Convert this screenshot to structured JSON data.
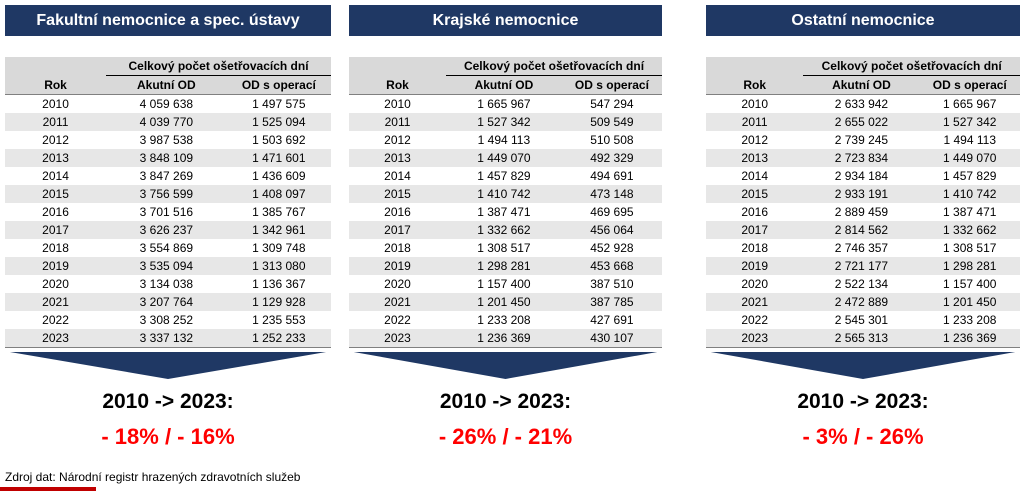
{
  "colors": {
    "header_bg": "#1F3864",
    "arrow": "#1F3864",
    "stripe": "#E7E7E7",
    "header_row_bg": "#D9D9D9",
    "accent_red": "#FF0000",
    "footer_line_red": "#C00000"
  },
  "panels": [
    {
      "title": "Fakultní nemocnice a spec. ústavy",
      "table": {
        "group_header": "Celkový počet ošetřovacích dní",
        "columns": [
          "Rok",
          "Akutní OD",
          "OD s operací"
        ],
        "rows": [
          [
            "2010",
            "4 059 638",
            "1 497 575"
          ],
          [
            "2011",
            "4 039 770",
            "1 525 094"
          ],
          [
            "2012",
            "3 987 538",
            "1 503 692"
          ],
          [
            "2013",
            "3 848 109",
            "1 471 601"
          ],
          [
            "2014",
            "3 847 269",
            "1 436 609"
          ],
          [
            "2015",
            "3 756 599",
            "1 408 097"
          ],
          [
            "2016",
            "3 701 516",
            "1 385 767"
          ],
          [
            "2017",
            "3 626 237",
            "1 342 961"
          ],
          [
            "2018",
            "3 554 869",
            "1 309 748"
          ],
          [
            "2019",
            "3 535 094",
            "1 313 080"
          ],
          [
            "2020",
            "3 134 038",
            "1 136 367"
          ],
          [
            "2021",
            "3 207 764",
            "1 129 928"
          ],
          [
            "2022",
            "3 308 252",
            "1 235 553"
          ],
          [
            "2023",
            "3 337 132",
            "1 252 233"
          ]
        ]
      },
      "summary": {
        "period": "2010 -> 2023:",
        "change": "- 18% / - 16%"
      }
    },
    {
      "title": "Krajské nemocnice",
      "table": {
        "group_header": "Celkový počet ošetřovacích dní",
        "columns": [
          "Rok",
          "Akutní OD",
          "OD s operací"
        ],
        "rows": [
          [
            "2010",
            "1 665 967",
            "547 294"
          ],
          [
            "2011",
            "1 527 342",
            "509 549"
          ],
          [
            "2012",
            "1 494 113",
            "510 508"
          ],
          [
            "2013",
            "1 449 070",
            "492 329"
          ],
          [
            "2014",
            "1 457 829",
            "494 691"
          ],
          [
            "2015",
            "1 410 742",
            "473 148"
          ],
          [
            "2016",
            "1 387 471",
            "469 695"
          ],
          [
            "2017",
            "1 332 662",
            "456 064"
          ],
          [
            "2018",
            "1 308 517",
            "452 928"
          ],
          [
            "2019",
            "1 298 281",
            "453 668"
          ],
          [
            "2020",
            "1 157 400",
            "387 510"
          ],
          [
            "2021",
            "1 201 450",
            "387 785"
          ],
          [
            "2022",
            "1 233 208",
            "427 691"
          ],
          [
            "2023",
            "1 236 369",
            "430 107"
          ]
        ]
      },
      "summary": {
        "period": "2010 -> 2023:",
        "change": "- 26% / - 21%"
      }
    },
    {
      "title": "Ostatní nemocnice",
      "table": {
        "group_header": "Celkový počet ošetřovacích dní",
        "columns": [
          "Rok",
          "Akutní OD",
          "OD s operací"
        ],
        "rows": [
          [
            "2010",
            "2 633 942",
            "1 665 967"
          ],
          [
            "2011",
            "2 655 022",
            "1 527 342"
          ],
          [
            "2012",
            "2 739 245",
            "1 494 113"
          ],
          [
            "2013",
            "2 723 834",
            "1 449 070"
          ],
          [
            "2014",
            "2 934 184",
            "1 457 829"
          ],
          [
            "2015",
            "2 933 191",
            "1 410 742"
          ],
          [
            "2016",
            "2 889 459",
            "1 387 471"
          ],
          [
            "2017",
            "2 814 562",
            "1 332 662"
          ],
          [
            "2018",
            "2 746 357",
            "1 308 517"
          ],
          [
            "2019",
            "2 721 177",
            "1 298 281"
          ],
          [
            "2020",
            "2 522 134",
            "1 157 400"
          ],
          [
            "2021",
            "2 472 889",
            "1 201 450"
          ],
          [
            "2022",
            "2 545 301",
            "1 233 208"
          ],
          [
            "2023",
            "2 565 313",
            "1 236 369"
          ]
        ]
      },
      "summary": {
        "period": "2010 -> 2023:",
        "change": "- 3% / - 26%"
      }
    }
  ],
  "footer": {
    "source": "Zdroj dat: Národní registr hrazených zdravotních služeb"
  }
}
